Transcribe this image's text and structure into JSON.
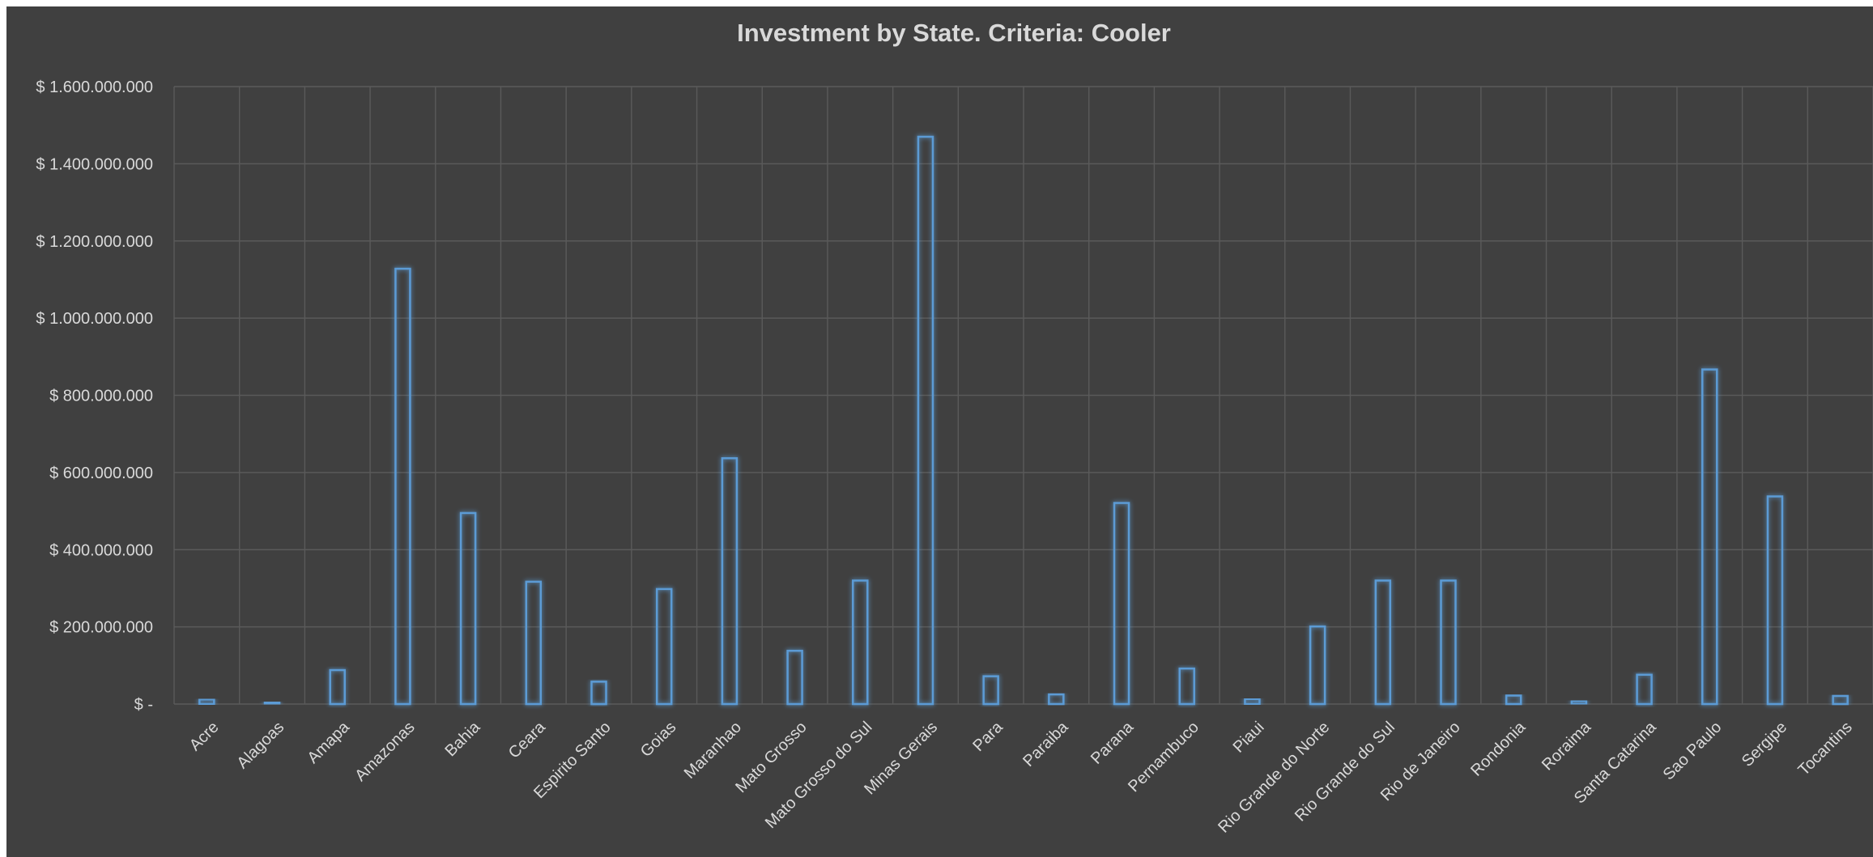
{
  "chart_data": {
    "type": "bar",
    "title": "Investment by State. Criteria: Cooler",
    "xlabel": "",
    "ylabel": "",
    "ylim": [
      0,
      1600000000
    ],
    "y_ticks": [
      {
        "value": 0,
        "label": "$ -"
      },
      {
        "value": 200000000,
        "label": "$ 200.000.000"
      },
      {
        "value": 400000000,
        "label": "$ 400.000.000"
      },
      {
        "value": 600000000,
        "label": "$ 600.000.000"
      },
      {
        "value": 800000000,
        "label": "$ 800.000.000"
      },
      {
        "value": 1000000000,
        "label": "$ 1.000.000.000"
      },
      {
        "value": 1200000000,
        "label": "$ 1.200.000.000"
      },
      {
        "value": 1400000000,
        "label": "$ 1.400.000.000"
      },
      {
        "value": 1600000000,
        "label": "$ 1.600.000.000"
      }
    ],
    "categories": [
      "Acre",
      "Alagoas",
      "Amapa",
      "Amazonas",
      "Bahia",
      "Ceara",
      "Espirito Santo",
      "Goias",
      "Maranhao",
      "Mato Grosso",
      "Mato Grosso do Sul",
      "Minas Gerais",
      "Para",
      "Paraiba",
      "Parana",
      "Pernambuco",
      "Piaui",
      "Rio Grande do Norte",
      "Rio Grande do Sul",
      "Rio de Janeiro",
      "Rondonia",
      "Roraima",
      "Santa Catarina",
      "Sao Paulo",
      "Sergipe",
      "Tocantins"
    ],
    "values": [
      12000000,
      5000000,
      88000000,
      1128000000,
      495000000,
      317000000,
      58000000,
      298000000,
      637000000,
      138000000,
      320000000,
      1470000000,
      72000000,
      25000000,
      521000000,
      92000000,
      13000000,
      201000000,
      320000000,
      320000000,
      22000000,
      8000000,
      76000000,
      867000000,
      538000000,
      21000000
    ],
    "grid": true,
    "legend": "none",
    "colors": {
      "background": "#404040",
      "bar_outline": "#5b9bd5",
      "text": "#d9d9d9",
      "grid": "#5a5a5a"
    }
  }
}
